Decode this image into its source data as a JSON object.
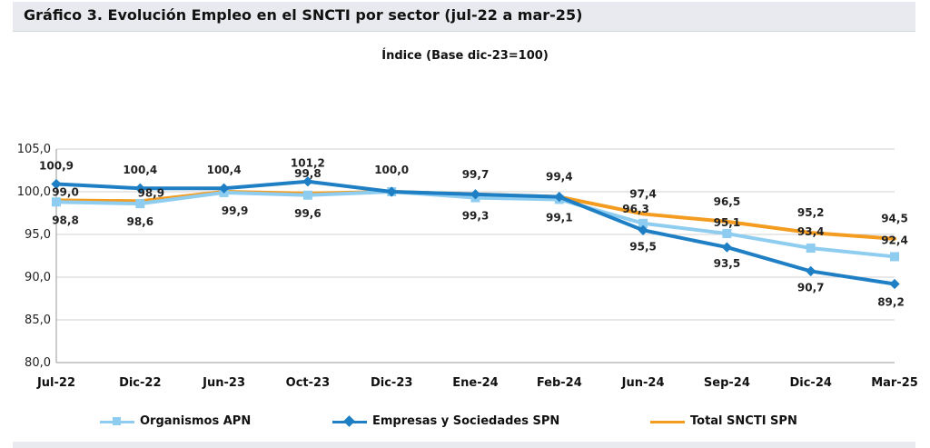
{
  "header": {
    "title": "Gráfico 3. Evolución Empleo en el SNCTI por sector (jul-22 a mar-25)"
  },
  "chart_data": {
    "type": "line",
    "title": "Índice (Base dic-23=100)",
    "categories": [
      "Jul-22",
      "Dic-22",
      "Jun-23",
      "Oct-23",
      "Dic-23",
      "Ene-24",
      "Feb-24",
      "Jun-24",
      "Sep-24",
      "Dic-24",
      "Mar-25"
    ],
    "ylim": [
      80,
      105
    ],
    "yticks": [
      "80,0",
      "85,0",
      "90,0",
      "95,0",
      "100,0",
      "105,0"
    ],
    "grid": true,
    "legend_position": "bottom",
    "series": [
      {
        "name": "Organismos APN",
        "color": "#8fcdf0",
        "marker": "square",
        "values": [
          98.8,
          98.6,
          99.9,
          99.6,
          100.0,
          99.3,
          99.1,
          96.3,
          95.1,
          93.4,
          92.4
        ],
        "labels": [
          "98,8",
          "98,6",
          "99,9",
          "99,6",
          "",
          "99,3",
          "99,1",
          "96,3",
          "95,1",
          "93,4",
          "92,4"
        ]
      },
      {
        "name": "Empresas y Sociedades SPN",
        "color": "#1f7fc4",
        "marker": "diamond",
        "values": [
          100.9,
          100.4,
          100.4,
          101.2,
          100.0,
          99.7,
          99.4,
          95.5,
          93.5,
          90.7,
          89.2
        ],
        "labels": [
          "100,9",
          "100,4",
          "100,4",
          "101,2",
          "",
          "",
          "",
          "95,5",
          "93,5",
          "90,7",
          "89,2"
        ]
      },
      {
        "name": "Total SNCTI SPN",
        "color": "#f39c1f",
        "marker": "none",
        "values": [
          99.0,
          98.9,
          100.0,
          99.8,
          100.0,
          99.7,
          99.4,
          97.4,
          96.5,
          95.2,
          94.5
        ],
        "labels": [
          "99,0",
          "98,9",
          "",
          "99,8",
          "100,0",
          "99,7",
          "99,4",
          "97,4",
          "96,5",
          "95,2",
          "94,5"
        ]
      }
    ]
  }
}
